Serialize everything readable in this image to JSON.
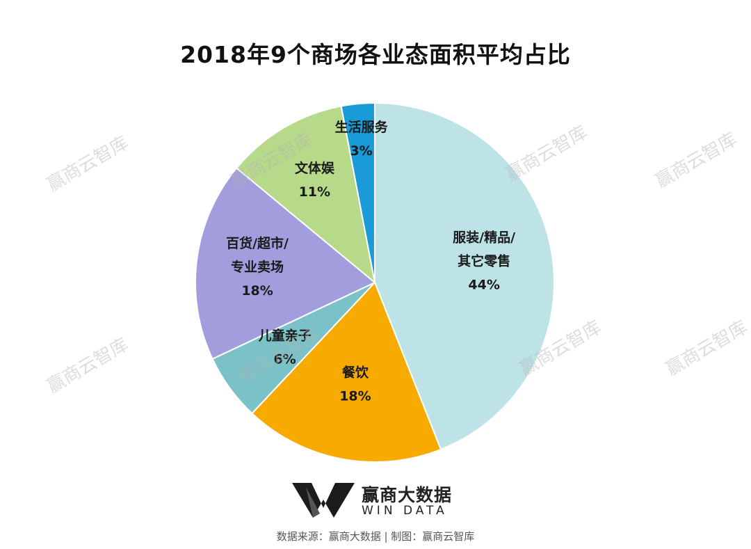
{
  "chart_data": {
    "type": "pie",
    "title": "2018年9个商场各业态面积平均占比",
    "slices": [
      {
        "lines": [
          "服装/精品/",
          "其它零售"
        ],
        "label_value": "44%",
        "value": 44,
        "color": "#bde3e6"
      },
      {
        "lines": [
          "餐饮"
        ],
        "label_value": "18%",
        "value": 18,
        "color": "#f7aa00"
      },
      {
        "lines": [
          "儿童亲子"
        ],
        "label_value": "6%",
        "value": 6,
        "color": "#7ac2c7"
      },
      {
        "lines": [
          "百货/超市/",
          "专业卖场"
        ],
        "label_value": "18%",
        "value": 18,
        "color": "#a29ddd"
      },
      {
        "lines": [
          "文体娱"
        ],
        "label_value": "11%",
        "value": 11,
        "color": "#b6d98a"
      },
      {
        "lines": [
          "生活服务"
        ],
        "label_value": "3%",
        "value": 3,
        "color": "#1a9ad7"
      }
    ]
  },
  "watermark_text": "赢商云智库",
  "logo": {
    "name": "赢商大数据",
    "sub": "WIN DATA"
  },
  "source_text": "数据来源：赢商大数据 | 制图：赢商云智库"
}
